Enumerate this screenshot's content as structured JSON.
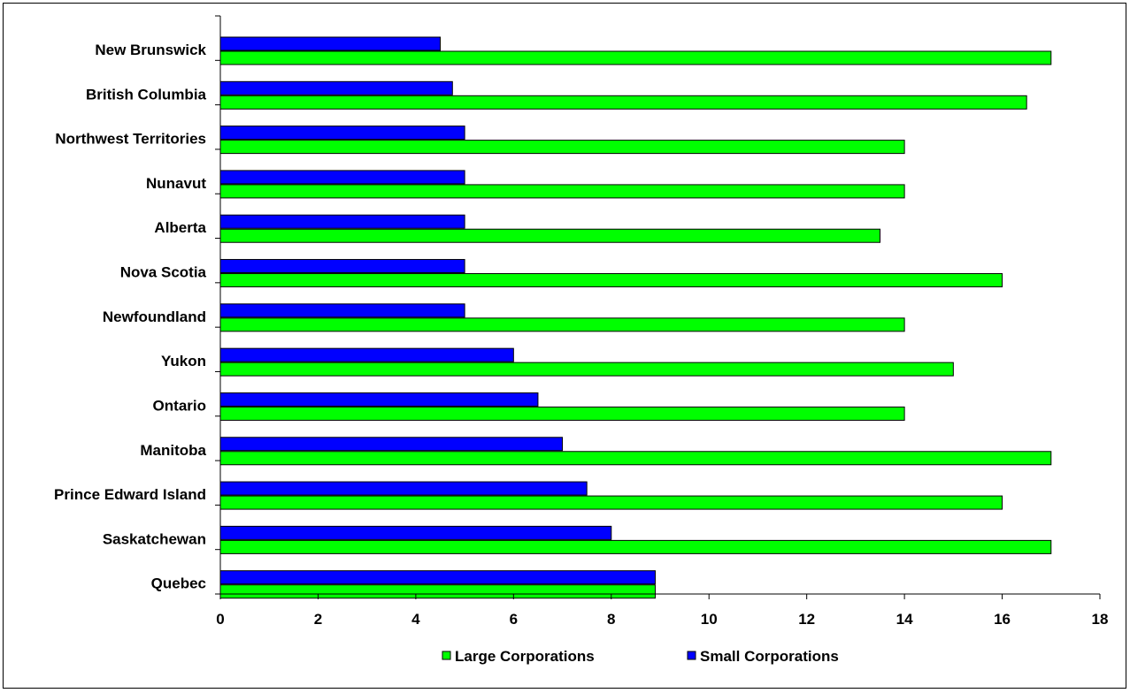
{
  "chart_data": {
    "type": "bar",
    "orientation": "horizontal",
    "categories": [
      "New Brunswick",
      "British Columbia",
      "Northwest Territories",
      "Nunavut",
      "Alberta",
      "Nova Scotia",
      "Newfoundland",
      "Yukon",
      "Ontario",
      "Manitoba",
      "Prince Edward Island",
      "Saskatchewan",
      "Quebec"
    ],
    "series": [
      {
        "name": "Small Corporations",
        "color": "#0000ff",
        "values": [
          4.5,
          4.75,
          5,
          5,
          5,
          5,
          5,
          6,
          6.5,
          7,
          7.5,
          8,
          8.9
        ]
      },
      {
        "name": "Large Corporations",
        "color": "#00ff00",
        "values": [
          17,
          16.5,
          14,
          14,
          13.5,
          16,
          14,
          15,
          14,
          17,
          16,
          17,
          8.9
        ]
      }
    ],
    "xlim": [
      0,
      18
    ],
    "xticks": [
      "0",
      "2",
      "4",
      "6",
      "8",
      "10",
      "12",
      "14",
      "16",
      "18"
    ],
    "legend": {
      "position": "bottom",
      "order": [
        "Large Corporations",
        "Small Corporations"
      ]
    },
    "grid": false
  }
}
